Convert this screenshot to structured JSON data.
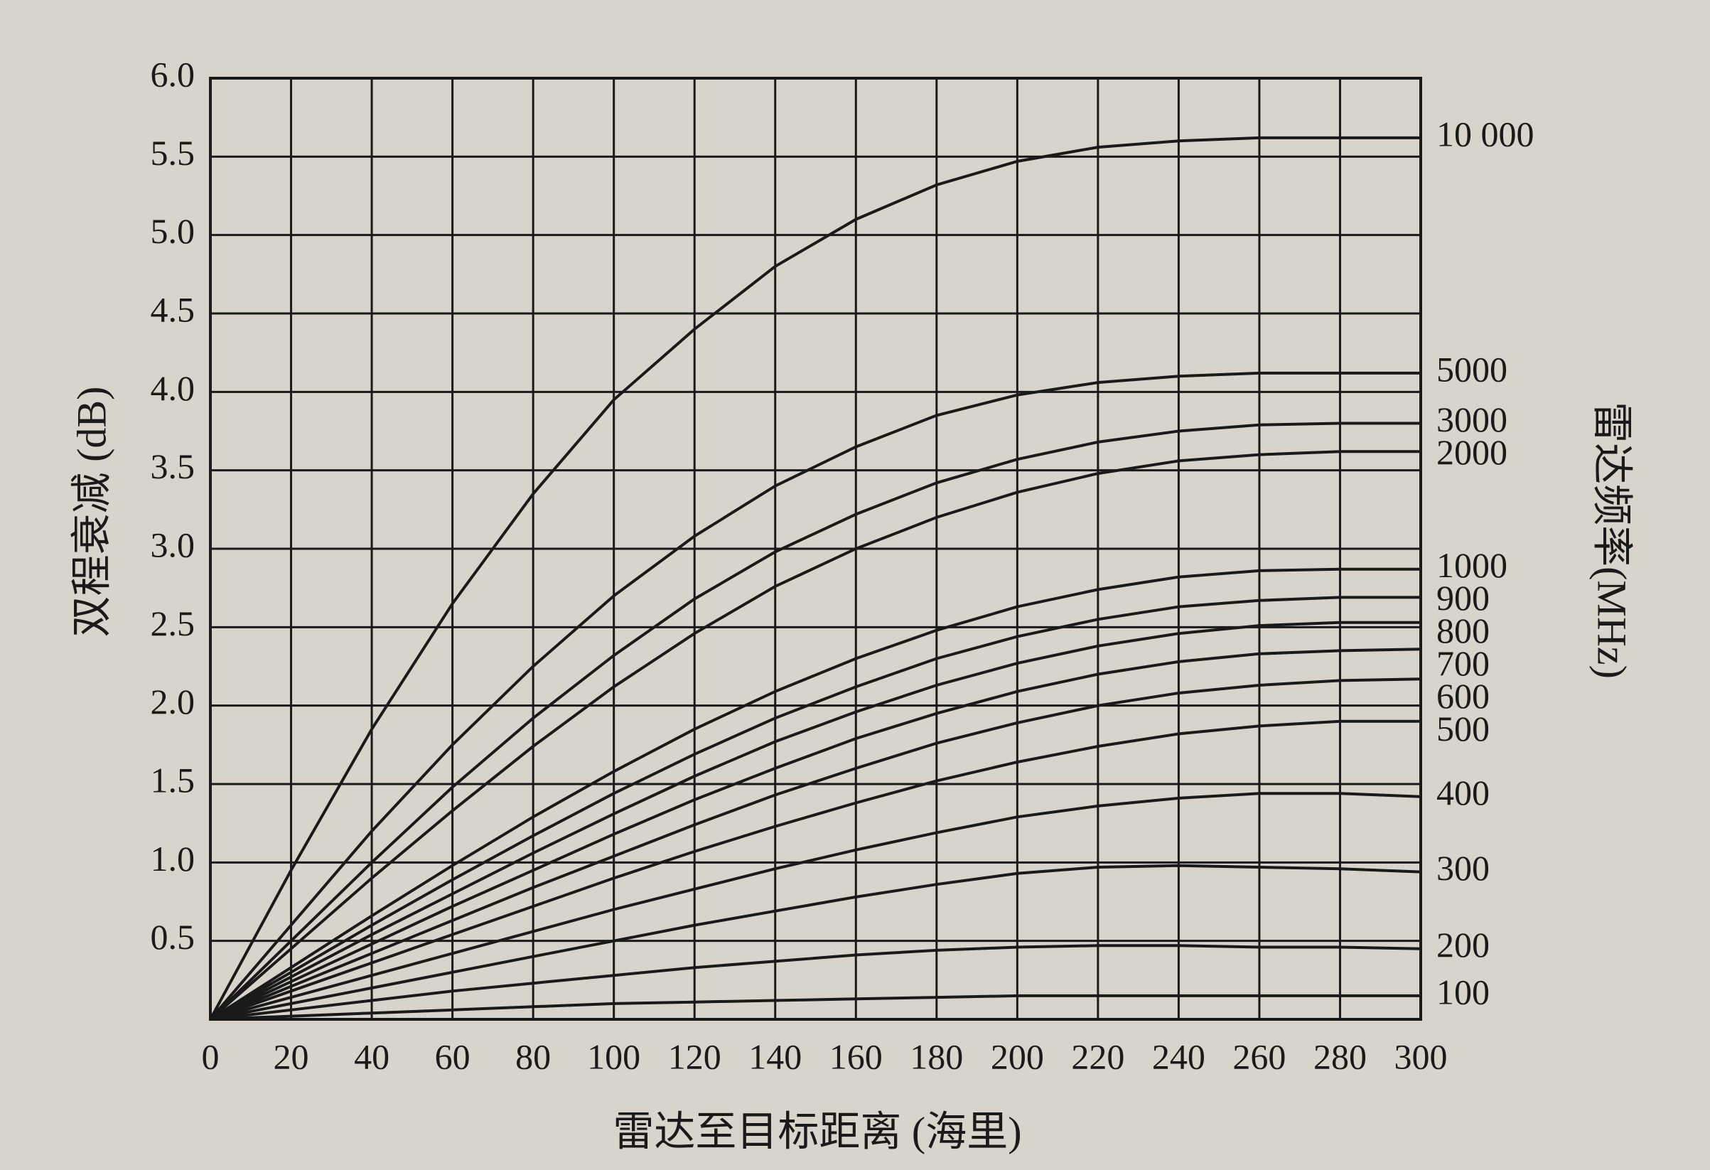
{
  "chart_data": {
    "type": "line",
    "x_label": "雷达至目标距离 (海里)",
    "y_label": "双程衰减 (dB)",
    "legend_title": "雷达频率(MHz)",
    "color": "#1a1a1a",
    "grid": true,
    "xlim": [
      0,
      300
    ],
    "ylim": [
      0,
      6
    ],
    "xticks": [
      0,
      20,
      40,
      60,
      80,
      100,
      120,
      140,
      160,
      180,
      200,
      220,
      240,
      260,
      280,
      300
    ],
    "yticks": [
      0.5,
      {
        "value": 1,
        "label": "1.0"
      },
      1.5,
      {
        "value": 2,
        "label": "2.0"
      },
      2.5,
      {
        "value": 3,
        "label": "3.0"
      },
      3.5,
      {
        "value": 4,
        "label": "4.0"
      },
      4.5,
      {
        "value": 5,
        "label": "5.0"
      },
      5.5,
      {
        "value": 6,
        "label": "6.0"
      }
    ],
    "x": [
      0,
      20,
      40,
      60,
      80,
      100,
      120,
      140,
      160,
      180,
      200,
      220,
      240,
      260,
      280,
      300
    ],
    "series": [
      {
        "name": "10 000",
        "values": [
          0,
          0.95,
          1.85,
          2.65,
          3.35,
          3.95,
          4.4,
          4.8,
          5.1,
          5.32,
          5.47,
          5.56,
          5.6,
          5.62,
          5.62,
          5.62
        ]
      },
      {
        "name": "5000",
        "values": [
          0,
          0.6,
          1.2,
          1.75,
          2.25,
          2.7,
          3.08,
          3.4,
          3.65,
          3.85,
          3.98,
          4.06,
          4.1,
          4.12,
          4.12,
          4.12
        ]
      },
      {
        "name": "3000",
        "values": [
          0,
          0.5,
          1.0,
          1.48,
          1.92,
          2.32,
          2.68,
          2.98,
          3.22,
          3.42,
          3.57,
          3.68,
          3.75,
          3.79,
          3.8,
          3.8
        ]
      },
      {
        "name": "2000",
        "values": [
          0,
          0.45,
          0.9,
          1.33,
          1.74,
          2.12,
          2.46,
          2.76,
          3.0,
          3.2,
          3.36,
          3.48,
          3.56,
          3.6,
          3.62,
          3.62
        ]
      },
      {
        "name": "1000",
        "values": [
          0,
          0.33,
          0.66,
          0.98,
          1.29,
          1.58,
          1.85,
          2.09,
          2.3,
          2.48,
          2.63,
          2.74,
          2.82,
          2.86,
          2.87,
          2.87
        ]
      },
      {
        "name": "900",
        "values": [
          0,
          0.3,
          0.6,
          0.89,
          1.17,
          1.44,
          1.69,
          1.92,
          2.12,
          2.3,
          2.44,
          2.55,
          2.63,
          2.67,
          2.69,
          2.69
        ]
      },
      {
        "name": "800",
        "values": [
          0,
          0.27,
          0.54,
          0.8,
          1.06,
          1.31,
          1.55,
          1.77,
          1.96,
          2.13,
          2.27,
          2.38,
          2.46,
          2.51,
          2.53,
          2.53
        ]
      },
      {
        "name": "700",
        "values": [
          0,
          0.24,
          0.48,
          0.72,
          0.95,
          1.18,
          1.4,
          1.6,
          1.79,
          1.95,
          2.09,
          2.2,
          2.28,
          2.33,
          2.35,
          2.36
        ]
      },
      {
        "name": "600",
        "values": [
          0,
          0.21,
          0.42,
          0.63,
          0.84,
          1.04,
          1.24,
          1.43,
          1.6,
          1.76,
          1.89,
          2.0,
          2.08,
          2.13,
          2.16,
          2.17
        ]
      },
      {
        "name": "500",
        "values": [
          0,
          0.18,
          0.36,
          0.54,
          0.72,
          0.9,
          1.07,
          1.23,
          1.38,
          1.52,
          1.64,
          1.74,
          1.82,
          1.87,
          1.9,
          1.9
        ]
      },
      {
        "name": "400",
        "values": [
          0,
          0.14,
          0.28,
          0.42,
          0.56,
          0.7,
          0.83,
          0.96,
          1.08,
          1.19,
          1.29,
          1.36,
          1.41,
          1.44,
          1.44,
          1.42
        ]
      },
      {
        "name": "300",
        "values": [
          0,
          0.1,
          0.2,
          0.3,
          0.4,
          0.5,
          0.6,
          0.69,
          0.78,
          0.86,
          0.93,
          0.97,
          0.98,
          0.97,
          0.96,
          0.94
        ]
      },
      {
        "name": "200",
        "values": [
          0,
          0.06,
          0.12,
          0.18,
          0.23,
          0.28,
          0.33,
          0.37,
          0.41,
          0.44,
          0.46,
          0.47,
          0.47,
          0.46,
          0.46,
          0.45
        ]
      },
      {
        "name": "100",
        "values": [
          0,
          0.02,
          0.04,
          0.06,
          0.08,
          0.1,
          0.11,
          0.12,
          0.13,
          0.14,
          0.15,
          0.15,
          0.15,
          0.15,
          0.15,
          0.15
        ]
      }
    ]
  }
}
